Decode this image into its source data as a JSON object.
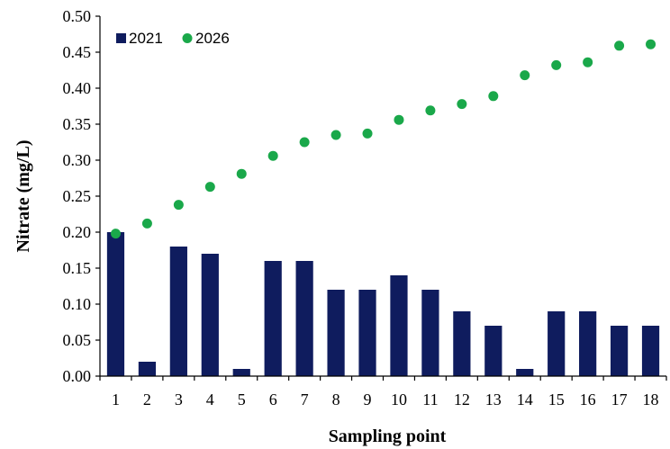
{
  "chart_data": {
    "type": "bar",
    "categories": [
      "1",
      "2",
      "3",
      "4",
      "5",
      "6",
      "7",
      "8",
      "9",
      "10",
      "11",
      "12",
      "13",
      "14",
      "15",
      "16",
      "17",
      "18"
    ],
    "series": [
      {
        "name": "2021",
        "type": "bar",
        "color": "#0f1c5e",
        "values": [
          0.2,
          0.02,
          0.18,
          0.17,
          0.01,
          0.16,
          0.16,
          0.12,
          0.12,
          0.14,
          0.12,
          0.09,
          0.07,
          0.01,
          0.09,
          0.09,
          0.07,
          0.07
        ]
      },
      {
        "name": "2026",
        "type": "scatter",
        "color": "#1aa84a",
        "values": [
          0.198,
          0.212,
          0.238,
          0.263,
          0.281,
          0.306,
          0.325,
          0.335,
          0.337,
          0.356,
          0.369,
          0.378,
          0.389,
          0.418,
          0.432,
          0.436,
          0.459,
          0.461
        ]
      }
    ],
    "xlabel": "Sampling point",
    "ylabel": "Nitrate (mg/L)",
    "ylim": [
      0,
      0.5
    ],
    "yticks": [
      "0.00",
      "0.05",
      "0.10",
      "0.15",
      "0.20",
      "0.25",
      "0.30",
      "0.35",
      "0.40",
      "0.45",
      "0.50"
    ],
    "grid": false,
    "legend_position": "top-left"
  }
}
